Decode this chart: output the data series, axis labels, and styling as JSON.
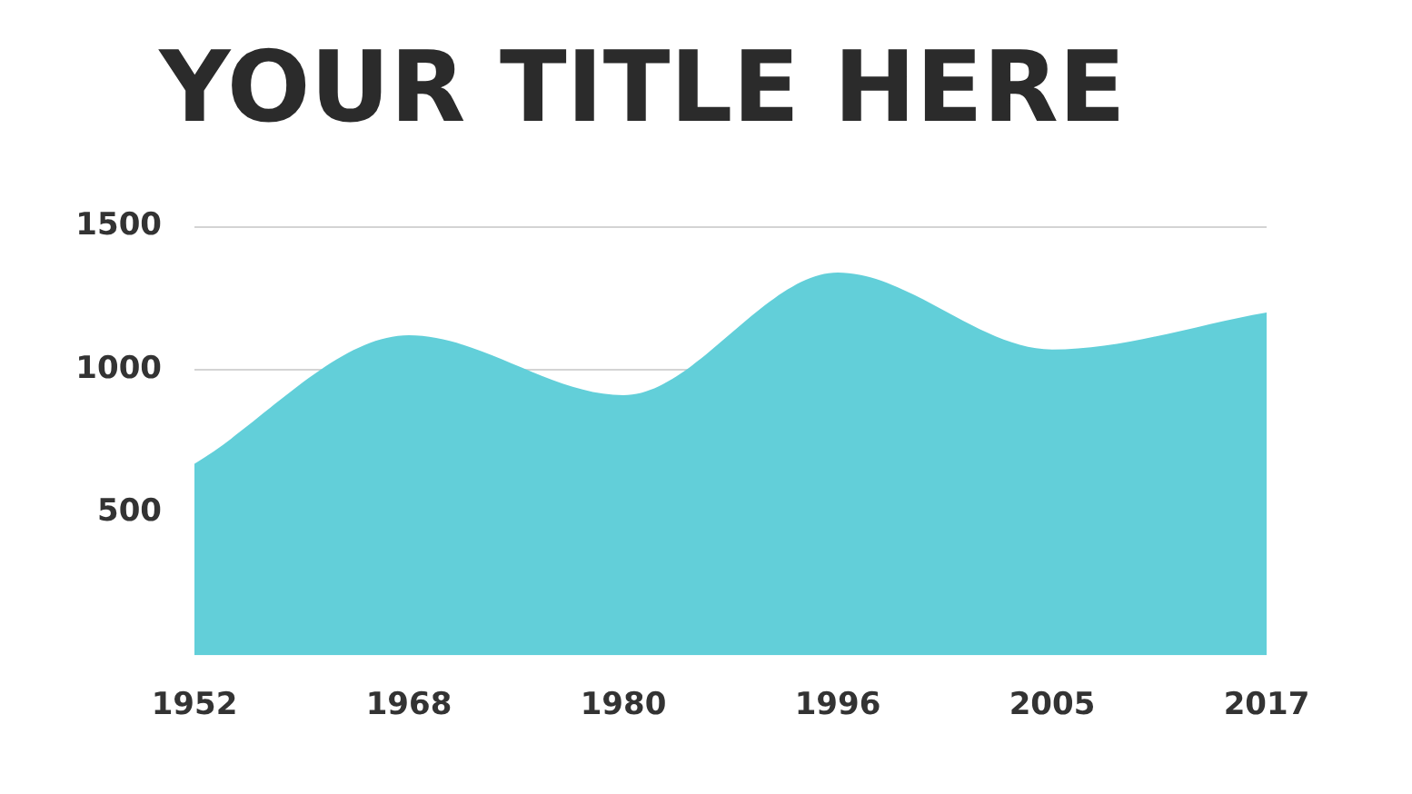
{
  "chart_data": {
    "type": "area",
    "title": "YOUR TITLE HERE",
    "categories": [
      "1952",
      "1968",
      "1980",
      "1996",
      "2005",
      "2017"
    ],
    "series": [
      {
        "color": "#62cfd9",
        "values": [
          670,
          1120,
          910,
          1340,
          1070,
          1200
        ]
      }
    ],
    "ylim": [
      0,
      1500
    ],
    "yticks": [
      500,
      1000,
      1500
    ],
    "grid": "y",
    "legend": false
  }
}
